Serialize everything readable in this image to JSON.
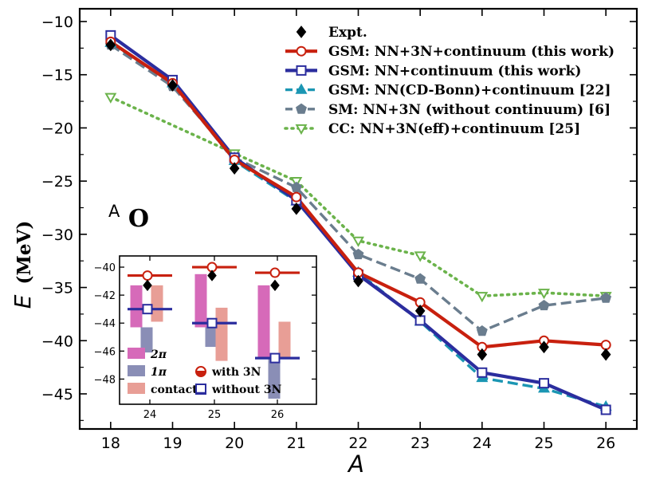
{
  "chart_data": [
    {
      "type": "line",
      "title_label": "O",
      "title_superscript": "A",
      "xlabel": "A",
      "ylabel_main": "E",
      "ylabel_unit": "(MeV)",
      "x": [
        18,
        19,
        20,
        21,
        22,
        23,
        24,
        25,
        26
      ],
      "xlim": [
        17.5,
        26.5
      ],
      "ylim": [
        -48.3,
        -8.8
      ],
      "xticks": [
        18,
        19,
        20,
        21,
        22,
        23,
        24,
        25,
        26
      ],
      "yticks": [
        -10,
        -15,
        -20,
        -25,
        -30,
        -35,
        -40,
        -45
      ],
      "ytick_labels": [
        "−10",
        "−15",
        "−20",
        "−25",
        "−30",
        "−35",
        "−40",
        "−45"
      ],
      "legend_position": "top-right",
      "series": [
        {
          "name": "Expt.",
          "color": "#000000",
          "style": "points",
          "marker": "diamond",
          "values": [
            -12.2,
            -16.0,
            -23.8,
            -27.6,
            -34.4,
            -37.2,
            -41.3,
            -40.6,
            -41.3
          ]
        },
        {
          "name": "GSM: NN+3N+continuum (this work)",
          "color": "#c8200e",
          "style": "solid",
          "marker": "circle",
          "values": [
            -11.9,
            -15.8,
            -23.0,
            -26.5,
            -33.6,
            -36.4,
            -40.6,
            -40.0,
            -40.4
          ]
        },
        {
          "name": "GSM: NN+continuum (this work)",
          "color": "#2b2d9e",
          "style": "solid",
          "marker": "square",
          "values": [
            -11.3,
            -15.5,
            -22.8,
            -26.8,
            -33.8,
            -38.1,
            -43.0,
            -44.0,
            -46.5
          ]
        },
        {
          "name": "GSM: NN(CD-Bonn)+continuum [22]",
          "color": "#1b96b3",
          "style": "dashed",
          "marker": "triangle-up",
          "values": [
            -12.0,
            -15.8,
            -23.1,
            -26.9,
            -33.6,
            -38.2,
            -43.5,
            -44.5,
            -46.2
          ]
        },
        {
          "name": "SM: NN+3N (without continuum) [6]",
          "color": "#6a7d8e",
          "style": "dashed",
          "marker": "pentagon",
          "values": [
            -12.2,
            -16.1,
            -22.8,
            -25.6,
            -31.9,
            -34.2,
            -39.1,
            -36.7,
            -36.0
          ]
        },
        {
          "name": "CC: NN+3N(eff)+continuum [25]",
          "color": "#6bb34b",
          "style": "dotted",
          "marker": "triangle-down",
          "values": [
            -17.1,
            null,
            -22.4,
            -25.0,
            -30.6,
            -32.0,
            -35.8,
            -35.5,
            -35.8
          ]
        }
      ]
    },
    {
      "type": "bar",
      "categories": [
        "24",
        "25",
        "26"
      ],
      "ylim": [
        -49.8,
        -39.2
      ],
      "yticks": [
        -40,
        -42,
        -44,
        -46,
        -48
      ],
      "ytick_labels": [
        "−40",
        "−42",
        "−44",
        "−46",
        "−48"
      ],
      "series": [
        {
          "name": "2π",
          "color": "#d66ab9",
          "tops": [
            -41.3,
            -40.5,
            -41.3
          ],
          "bottoms": [
            -44.3,
            -44.3,
            -46.5
          ]
        },
        {
          "name": "1π",
          "color": "#8a8eb6",
          "tops": [
            -44.3,
            -44.3,
            -46.5
          ],
          "bottoms": [
            -46.1,
            -45.7,
            -49.4
          ]
        },
        {
          "name": "contact",
          "color": "#e89e96",
          "tops": [
            -41.3,
            -42.9,
            -43.9
          ],
          "bottoms": [
            -43.9,
            -46.7,
            -46.5
          ]
        }
      ],
      "levels": [
        {
          "name": "with 3N",
          "color": "#c8200e",
          "values": [
            -40.6,
            -40.0,
            -40.4
          ]
        },
        {
          "name": "without 3N",
          "color": "#2b2d9e",
          "values": [
            -43.0,
            -44.0,
            -46.5
          ]
        },
        {
          "name": "Expt.",
          "color": "#000000",
          "values": [
            -41.3,
            -40.6,
            -41.3
          ]
        }
      ]
    }
  ]
}
